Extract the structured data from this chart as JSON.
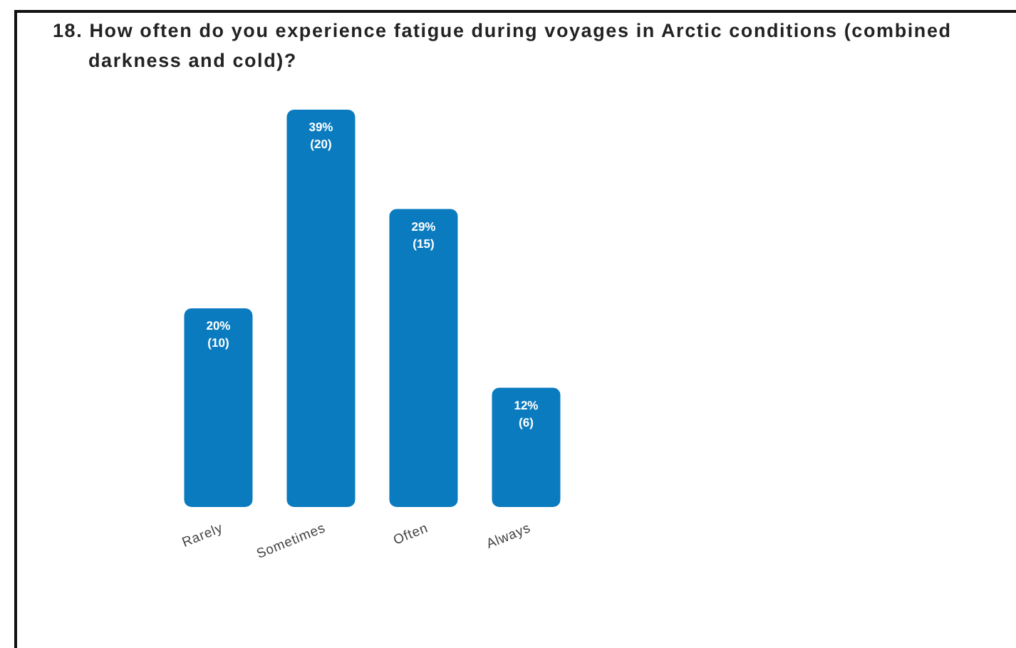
{
  "chart_data": {
    "type": "bar",
    "title": "18. How often do you experience fatigue during voyages in Arctic conditions (combined darkness and cold)?",
    "categories": [
      "Rarely",
      "Sometimes",
      "Often",
      "Always"
    ],
    "values": [
      10,
      20,
      15,
      6
    ],
    "value_labels": [
      "20%\n(10)",
      "39%\n(20)",
      "29%\n(15)",
      "12%\n(6)"
    ],
    "color": "#0a7bbf"
  }
}
